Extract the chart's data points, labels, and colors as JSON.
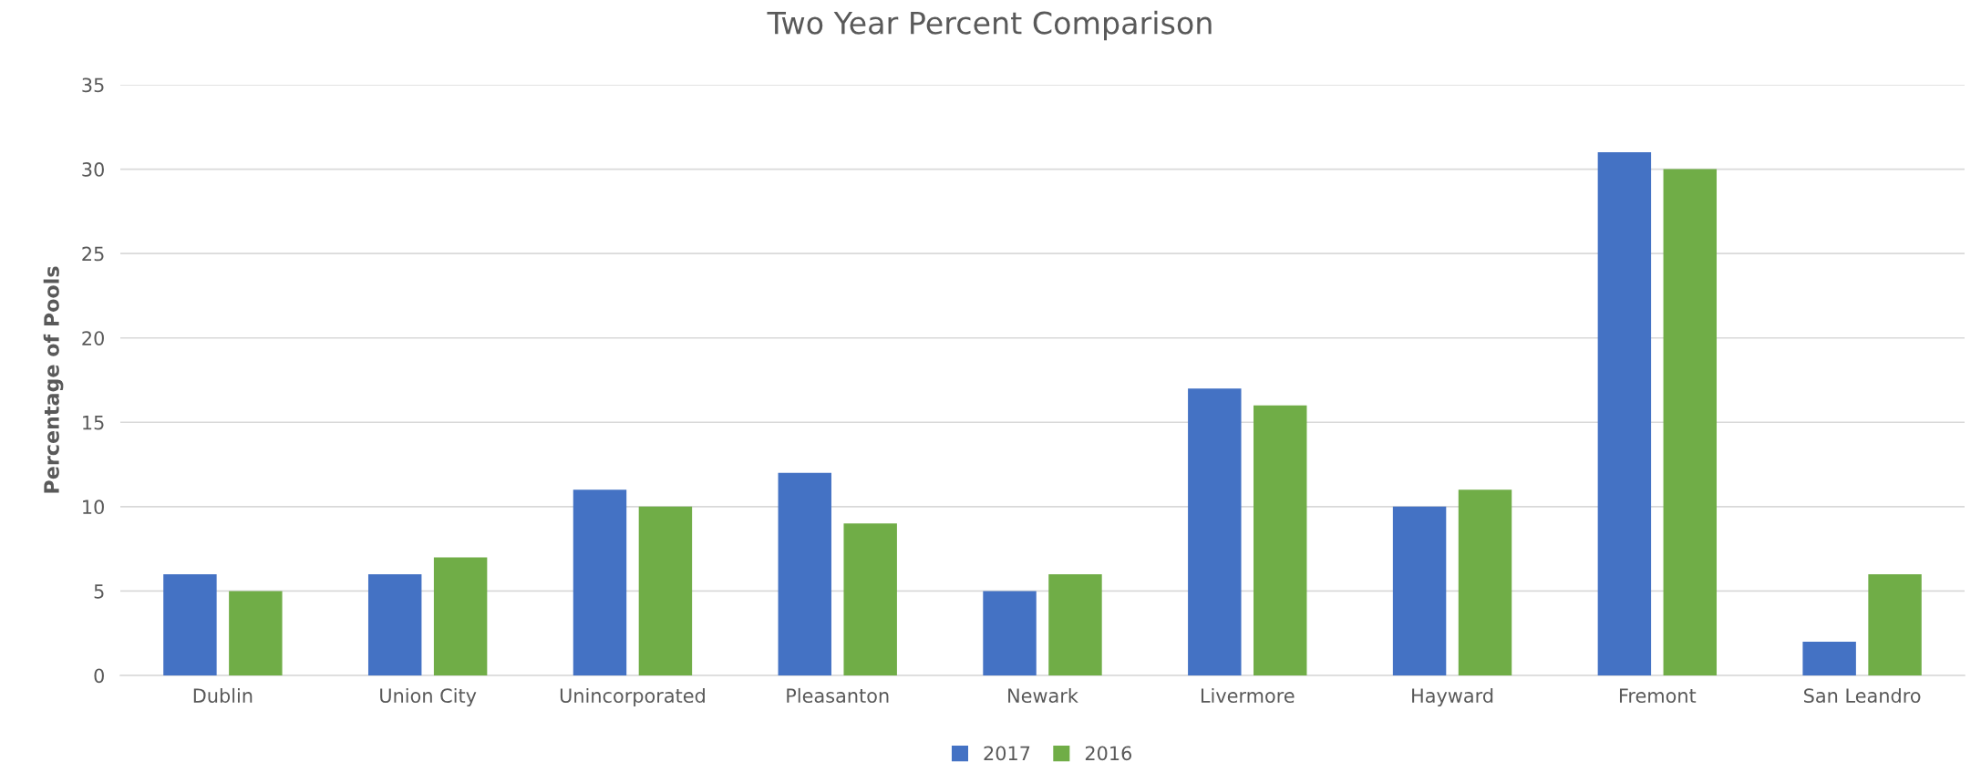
{
  "chart_data": {
    "type": "bar",
    "title": "Two Year Percent Comparison",
    "ylabel": "Percentage of Pools",
    "categories": [
      "Dublin",
      "Union City",
      "Unincorporated",
      "Pleasanton",
      "Newark",
      "Livermore",
      "Hayward",
      "Fremont",
      "San Leandro"
    ],
    "series": [
      {
        "name": "2017",
        "color": "#4472c4",
        "values": [
          6,
          6,
          11,
          12,
          5,
          17,
          10,
          31,
          2
        ]
      },
      {
        "name": "2016",
        "color": "#70ad47",
        "values": [
          5,
          7,
          10,
          9,
          6,
          16,
          11,
          30,
          6
        ]
      }
    ],
    "ylim": [
      0,
      35
    ],
    "yticks": [
      0,
      5,
      10,
      15,
      20,
      25,
      30,
      35
    ],
    "grid": "y",
    "legend": "bottom"
  }
}
